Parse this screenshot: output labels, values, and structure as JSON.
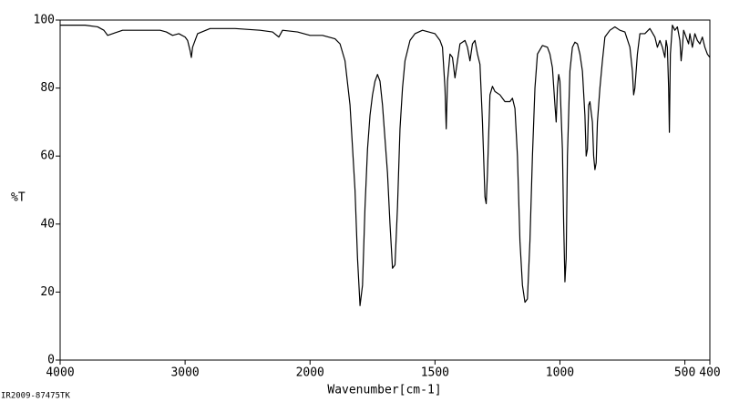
{
  "chart_data": {
    "type": "line",
    "xlabel": "Wavenumber[cm-1]",
    "ylabel": "%T",
    "footer": "IR2009-87475TK",
    "color": "#000000",
    "x_scale_change": {
      "at": 2000,
      "factor": 2
    },
    "xlim": [
      4000,
      400
    ],
    "xticks": [
      4000,
      3000,
      2000,
      1500,
      1000,
      500,
      400
    ],
    "ylim": [
      0,
      100
    ],
    "yticks": [
      0,
      20,
      40,
      60,
      80,
      100
    ],
    "x": [
      4000,
      3800,
      3700,
      3650,
      3620,
      3580,
      3500,
      3400,
      3300,
      3200,
      3150,
      3100,
      3050,
      3000,
      2980,
      2960,
      2950,
      2940,
      2900,
      2800,
      2600,
      2400,
      2300,
      2250,
      2220,
      2100,
      2050,
      2000,
      1950,
      1900,
      1880,
      1860,
      1840,
      1820,
      1810,
      1800,
      1790,
      1780,
      1770,
      1760,
      1750,
      1740,
      1730,
      1720,
      1710,
      1700,
      1690,
      1680,
      1670,
      1660,
      1650,
      1640,
      1630,
      1620,
      1600,
      1580,
      1550,
      1500,
      1480,
      1470,
      1460,
      1455,
      1450,
      1440,
      1430,
      1420,
      1410,
      1400,
      1380,
      1370,
      1360,
      1350,
      1340,
      1330,
      1320,
      1310,
      1300,
      1295,
      1290,
      1280,
      1270,
      1260,
      1240,
      1220,
      1200,
      1190,
      1180,
      1170,
      1160,
      1150,
      1140,
      1130,
      1120,
      1110,
      1100,
      1090,
      1070,
      1050,
      1040,
      1030,
      1020,
      1015,
      1010,
      1005,
      1000,
      990,
      985,
      980,
      975,
      970,
      960,
      950,
      940,
      930,
      920,
      910,
      900,
      895,
      890,
      885,
      880,
      870,
      865,
      860,
      855,
      850,
      845,
      840,
      830,
      820,
      800,
      780,
      760,
      740,
      720,
      710,
      705,
      700,
      690,
      680,
      660,
      640,
      620,
      610,
      600,
      590,
      580,
      575,
      570,
      565,
      562,
      558,
      550,
      540,
      530,
      520,
      515,
      510,
      505,
      495,
      485,
      480,
      470,
      460,
      450,
      440,
      430,
      420,
      410,
      400
    ],
    "values": [
      98.5,
      98.5,
      98,
      97,
      95.5,
      96,
      97,
      97,
      97,
      97,
      96.5,
      95.5,
      96,
      95,
      94,
      91,
      89,
      92,
      96,
      97.5,
      97.5,
      97,
      96.5,
      95,
      97,
      96.5,
      96,
      95.5,
      95.5,
      94.5,
      93,
      88,
      75,
      50,
      30,
      16,
      22,
      45,
      62,
      72,
      78,
      82,
      84,
      82,
      75,
      65,
      55,
      40,
      27,
      28,
      45,
      68,
      80,
      88,
      94,
      96,
      97,
      96,
      94,
      92,
      80,
      68,
      82,
      90,
      89,
      83,
      88,
      93,
      94,
      92,
      88,
      93,
      94,
      90,
      87,
      70,
      48,
      46,
      55,
      78,
      80.5,
      79,
      78,
      76,
      76,
      77,
      74,
      60,
      35,
      22,
      17,
      18,
      35,
      60,
      80,
      90,
      92.5,
      92,
      90,
      86,
      75,
      70,
      80,
      84,
      82,
      62,
      40,
      23,
      30,
      60,
      85,
      92,
      93.5,
      93,
      90,
      85,
      72,
      60,
      62,
      75,
      76,
      70,
      60,
      56,
      58,
      70,
      75,
      80,
      88,
      95,
      97,
      98,
      97,
      96.5,
      92,
      85,
      78,
      80,
      90,
      96,
      96,
      97.5,
      95,
      92,
      94,
      92,
      89,
      94,
      92,
      80,
      67,
      90,
      98.5,
      97,
      98,
      94,
      88,
      92,
      97,
      95,
      93,
      96,
      92,
      96,
      94,
      93,
      95,
      92,
      90,
      89
    ]
  }
}
